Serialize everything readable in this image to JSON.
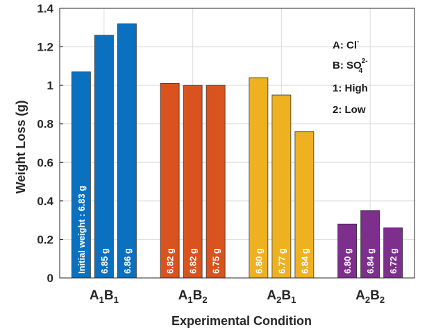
{
  "chart_data": {
    "type": "bar",
    "xlabel": "Experimental Condition",
    "ylabel": "Weight Loss (g)",
    "ylim": [
      0,
      1.4
    ],
    "yticks": [
      "0",
      "0.2",
      "0.4",
      "0.6",
      "0.8",
      "1",
      "1.2",
      "1.4"
    ],
    "grid": true,
    "legend_position": "top-right",
    "legend": [
      {
        "key": "A",
        "text": "Cl",
        "sup": "-",
        "sub": ""
      },
      {
        "key": "B",
        "text": "SO",
        "sup": "2-",
        "sub": "4"
      },
      {
        "key": "1",
        "text": "High",
        "sup": "",
        "sub": ""
      },
      {
        "key": "2",
        "text": "Low",
        "sup": "",
        "sub": ""
      }
    ],
    "categories": [
      {
        "a": "A",
        "a_sub": "1",
        "b": "B",
        "b_sub": "1",
        "color": "#0a70c0",
        "values": [
          1.07,
          1.26,
          1.32
        ],
        "labels": [
          "Initial weight : 6.83 g",
          "6.85 g",
          "6.86 g"
        ]
      },
      {
        "a": "A",
        "a_sub": "1",
        "b": "B",
        "b_sub": "2",
        "color": "#d9531e",
        "values": [
          1.01,
          1.0,
          1.0
        ],
        "labels": [
          "6.82 g",
          "6.82 g",
          "6.75 g"
        ]
      },
      {
        "a": "A",
        "a_sub": "2",
        "b": "B",
        "b_sub": "1",
        "color": "#eeb120",
        "values": [
          1.04,
          0.95,
          0.76
        ],
        "labels": [
          "6.80 g",
          "6.77 g",
          "6.84 g"
        ]
      },
      {
        "a": "A",
        "a_sub": "2",
        "b": "B",
        "b_sub": "2",
        "color": "#7e2f8e",
        "values": [
          0.28,
          0.35,
          0.26
        ],
        "labels": [
          "6.80 g",
          "6.84 g",
          "6.72 g"
        ]
      }
    ]
  }
}
